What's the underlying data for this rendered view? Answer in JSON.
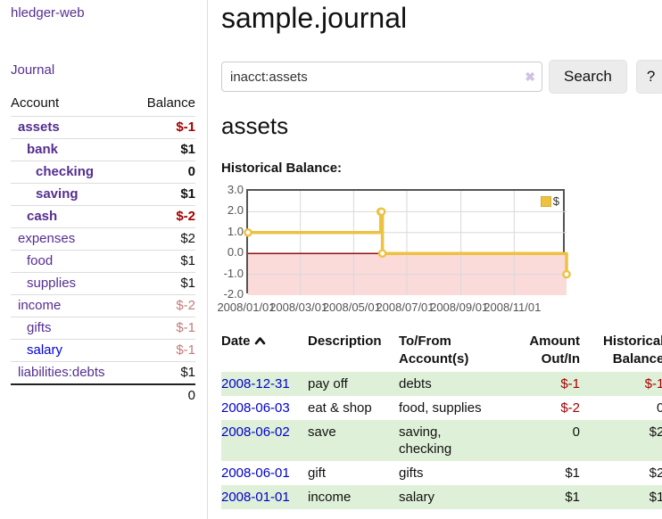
{
  "colors": {
    "link_purple": "#552e91",
    "link_blue": "#0000dd",
    "negative_strong": "#a40000",
    "negative_light": "#c47a7a",
    "row_green": "#dff0d8",
    "series_yellow": "#edc240",
    "chart_border": "#545454",
    "negative_region_pink": "#fbdada",
    "zero_line_red": "#8f1010"
  },
  "sidebar": {
    "brand": "hledger-web",
    "nav_journal": "Journal",
    "accounts": {
      "header_account": "Account",
      "header_balance": "Balance",
      "rows": [
        {
          "name": "assets",
          "balance": "$-1",
          "name_cls": "strong",
          "bal_cls": "neg strong"
        },
        {
          "name": "bank",
          "balance": "$1",
          "name_cls": "strong",
          "bal_cls": "strong"
        },
        {
          "name": "checking",
          "balance": "0",
          "name_cls": "strong",
          "bal_cls": "strong"
        },
        {
          "name": "saving",
          "balance": "$1",
          "name_cls": "strong",
          "bal_cls": "strong"
        },
        {
          "name": "cash",
          "balance": "$-2",
          "name_cls": "strong",
          "bal_cls": "neg strong"
        },
        {
          "name": "expenses",
          "balance": "$2",
          "name_cls": "",
          "bal_cls": ""
        },
        {
          "name": "food",
          "balance": "$1",
          "name_cls": "",
          "bal_cls": ""
        },
        {
          "name": "supplies",
          "balance": "$1",
          "name_cls": "",
          "bal_cls": ""
        },
        {
          "name": "income",
          "balance": "$-2",
          "name_cls": "",
          "bal_cls": "neg-light"
        },
        {
          "name": "gifts",
          "balance": "$-1",
          "name_cls": "",
          "bal_cls": "neg-light"
        },
        {
          "name": "salary",
          "balance": "$-1",
          "name_cls": "blue",
          "bal_cls": "neg-light"
        },
        {
          "name": "liabilities:debts",
          "balance": "$1",
          "name_cls": "",
          "bal_cls": ""
        }
      ],
      "total": "0"
    }
  },
  "main": {
    "title": "sample.journal",
    "search": {
      "value": "inacct:assets",
      "clear_icon": "✖",
      "button_label": "Search",
      "help_label": "?"
    },
    "account_heading": "assets",
    "chart_title": "Historical Balance:"
  },
  "chart_data": {
    "type": "line",
    "step": true,
    "title": "Historical Balance:",
    "series": [
      {
        "name": "$",
        "color": "#edc240",
        "points": [
          [
            "2008-01-01",
            1
          ],
          [
            "2008-06-01",
            2
          ],
          [
            "2008-06-02",
            2
          ],
          [
            "2008-06-03",
            0
          ],
          [
            "2008-12-31",
            -1
          ]
        ]
      }
    ],
    "xlim": [
      "2008-01-01",
      "2008-12-31"
    ],
    "ylim": [
      -2,
      3
    ],
    "x_tick_labels": [
      "2008/01/01",
      "2008/03/01",
      "2008/05/01",
      "2008/07/01",
      "2008/09/01",
      "2008/11/01"
    ],
    "y_tick_labels": [
      "3.0",
      "2.0",
      "1.0",
      "0.0",
      "-1.0",
      "-2.0"
    ],
    "legend": {
      "label": "$",
      "position": "top-right"
    },
    "grid": true,
    "negative_region_fill": "#fbdada",
    "zero_line_color": "#8f1010"
  },
  "register": {
    "headers": {
      "date": "Date",
      "description": "Description",
      "tofrom_1": "To/From",
      "tofrom_2": "Account(s)",
      "amount_1": "Amount",
      "amount_2": "Out/In",
      "balance_1": "Historical",
      "balance_2": "Balance"
    },
    "rows": [
      {
        "date": "2008-12-31",
        "description": "pay off",
        "accounts": "debts",
        "amount": "$-1",
        "amount_cls": "neg",
        "balance": "$-1",
        "balance_cls": "neg"
      },
      {
        "date": "2008-06-03",
        "description": "eat & shop",
        "accounts": "food, supplies",
        "amount": "$-2",
        "amount_cls": "neg",
        "balance": "0",
        "balance_cls": ""
      },
      {
        "date": "2008-06-02",
        "description": "save",
        "accounts": "saving,\nchecking",
        "amount": "0",
        "amount_cls": "",
        "balance": "$2",
        "balance_cls": ""
      },
      {
        "date": "2008-06-01",
        "description": "gift",
        "accounts": "gifts",
        "amount": "$1",
        "amount_cls": "",
        "balance": "$2",
        "balance_cls": ""
      },
      {
        "date": "2008-01-01",
        "description": "income",
        "accounts": "salary",
        "amount": "$1",
        "amount_cls": "",
        "balance": "$1",
        "balance_cls": ""
      }
    ]
  }
}
